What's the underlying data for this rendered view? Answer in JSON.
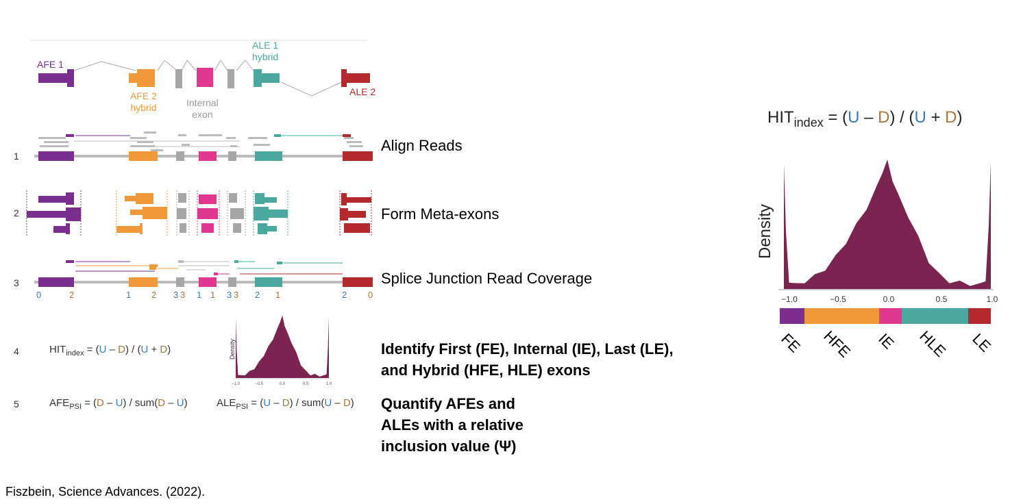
{
  "gene_model": {
    "labels": {
      "afe1": "AFE 1",
      "afe2": [
        "AFE 2",
        "hybrid"
      ],
      "internal": [
        "Internal",
        "exon"
      ],
      "ale1": [
        "ALE 1",
        "hybrid"
      ],
      "ale2": "ALE 2"
    },
    "colors": {
      "afe1": "#7a2e8e",
      "afe2": "#f0993a",
      "internal": "#a7a7a9",
      "pink": "#e0388e",
      "ale1": "#4aa89e",
      "ale2": "#b4292d"
    }
  },
  "steps": [
    {
      "num": "1",
      "label": "Align Reads"
    },
    {
      "num": "2",
      "label": "Form Meta-exons"
    },
    {
      "num": "3",
      "label": "Splice Junction Read Coverage"
    },
    {
      "num": "4",
      "label": "Identify First (FE), Internal (IE), Last (LE), and Hybrid (HFE, HLE) exons"
    },
    {
      "num": "5",
      "label": "Quantify AFEs and ALEs with a relative inclusion value (Ψ)"
    }
  ],
  "step4_label_lines": [
    "Identify First (FE), Internal (IE), Last (LE),",
    "and Hybrid (HFE, HLE) exons"
  ],
  "step5_label_lines": [
    "Quantify AFEs and",
    "ALEs with a relative",
    "inclusion value (Ψ)"
  ],
  "coverage_numbers": [
    "0",
    "2",
    "1",
    "2",
    "3",
    "3",
    "1",
    "1",
    "3",
    "3",
    "2",
    "1",
    "2",
    "0"
  ],
  "formulas": {
    "hit": {
      "base": "HIT",
      "sub": "index",
      "eq": "= (",
      "U": "U",
      "minus": " – ",
      "D": "D",
      "mid": ") / (",
      "plus": " + ",
      "end": ")"
    },
    "afe": {
      "base": "AFE",
      "sub": "PSI",
      "eq": "= (",
      "D": "D",
      "minus": " – ",
      "U": "U",
      "mid": ") / sum(",
      "end": ")"
    },
    "ale": {
      "base": "ALE",
      "sub": "PSI",
      "eq": "= (",
      "U": "U",
      "minus": " – ",
      "D": "D",
      "mid": ") / sum(",
      "end": ")"
    }
  },
  "density_chart": {
    "title_base": "HIT",
    "title_sub": "index",
    "title_rest": [
      "= (",
      "U",
      " – ",
      "D",
      ") / (",
      "U",
      " + ",
      "D",
      ")"
    ],
    "ylabel": "Density",
    "xticks": [
      "−1.0",
      "−0.5",
      "0.0",
      "0.5",
      "1.0"
    ],
    "fill": "#7b2451",
    "bins": [
      {
        "label": "FE",
        "color": "#7b2e8e"
      },
      {
        "label": "HFE",
        "color": "#f0993a"
      },
      {
        "label": "IE",
        "color": "#e0388e"
      },
      {
        "label": "HLE",
        "color": "#4aa89e"
      },
      {
        "label": "LE",
        "color": "#b4292d"
      }
    ]
  },
  "chart_data": {
    "type": "area",
    "title": "HITindex = (U – D) / (U + D)",
    "xlabel": "",
    "ylabel": "Density",
    "xlim": [
      -1.0,
      1.0
    ],
    "x": [
      -1.0,
      -0.98,
      -0.95,
      -0.9,
      -0.8,
      -0.7,
      -0.6,
      -0.5,
      -0.4,
      -0.3,
      -0.2,
      -0.1,
      -0.05,
      0.0,
      0.05,
      0.1,
      0.2,
      0.3,
      0.4,
      0.5,
      0.6,
      0.7,
      0.8,
      0.9,
      0.95,
      0.98,
      1.0
    ],
    "y": [
      0.98,
      0.45,
      0.05,
      0.03,
      0.06,
      0.1,
      0.16,
      0.25,
      0.37,
      0.5,
      0.64,
      0.8,
      0.92,
      1.0,
      0.86,
      0.74,
      0.58,
      0.4,
      0.22,
      0.11,
      0.06,
      0.05,
      0.04,
      0.03,
      0.06,
      0.5,
      1.0
    ]
  },
  "citation": "Fiszbein, Science Advances. (2022)."
}
